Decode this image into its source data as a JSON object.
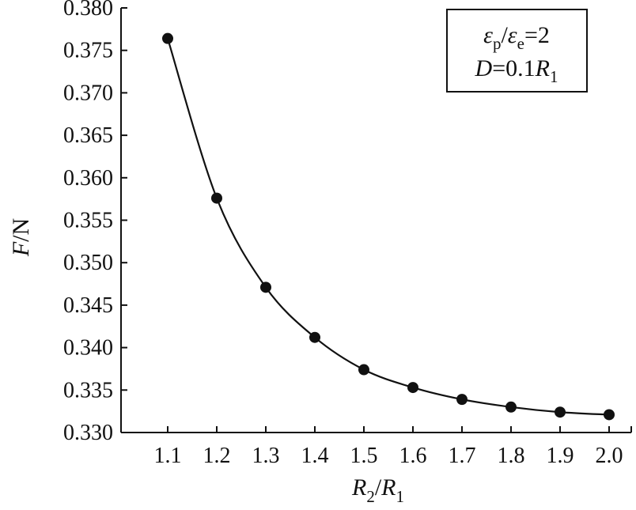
{
  "chart_data": {
    "type": "line",
    "x_ticks": [
      "1.1",
      "1.2",
      "1.3",
      "1.4",
      "1.5",
      "1.6",
      "1.7",
      "1.8",
      "1.9",
      "2.0"
    ],
    "y_ticks": [
      "0.330",
      "0.335",
      "0.340",
      "0.345",
      "0.350",
      "0.355",
      "0.360",
      "0.365",
      "0.370",
      "0.375",
      "0.380"
    ],
    "xlim": [
      1.1,
      2.0
    ],
    "ylim": [
      0.33,
      0.38
    ],
    "xlabel": {
      "var": "R",
      "sub": "2",
      "sep": "/",
      "var2": "R",
      "sub2": "1"
    },
    "ylabel": {
      "var": "F",
      "unit": "/N"
    },
    "series": [
      {
        "x": [
          1.1,
          1.2,
          1.3,
          1.4,
          1.5,
          1.6,
          1.7,
          1.8,
          1.9,
          2.0
        ],
        "values": [
          0.3764,
          0.3576,
          0.3471,
          0.3412,
          0.3374,
          0.3353,
          0.3339,
          0.333,
          0.3324,
          0.3321
        ],
        "color": "#111111",
        "marker": "filled-circle"
      }
    ],
    "legend": {
      "placement": "top-right",
      "line1": {
        "var": "ε",
        "sub": "p",
        "sep": "/",
        "var2": "ε",
        "sub2": "e",
        "tail": "=2"
      },
      "line2": {
        "var": "D",
        "mid": "=0.1",
        "var2": "R",
        "sub2": "1"
      }
    },
    "grid": false
  }
}
